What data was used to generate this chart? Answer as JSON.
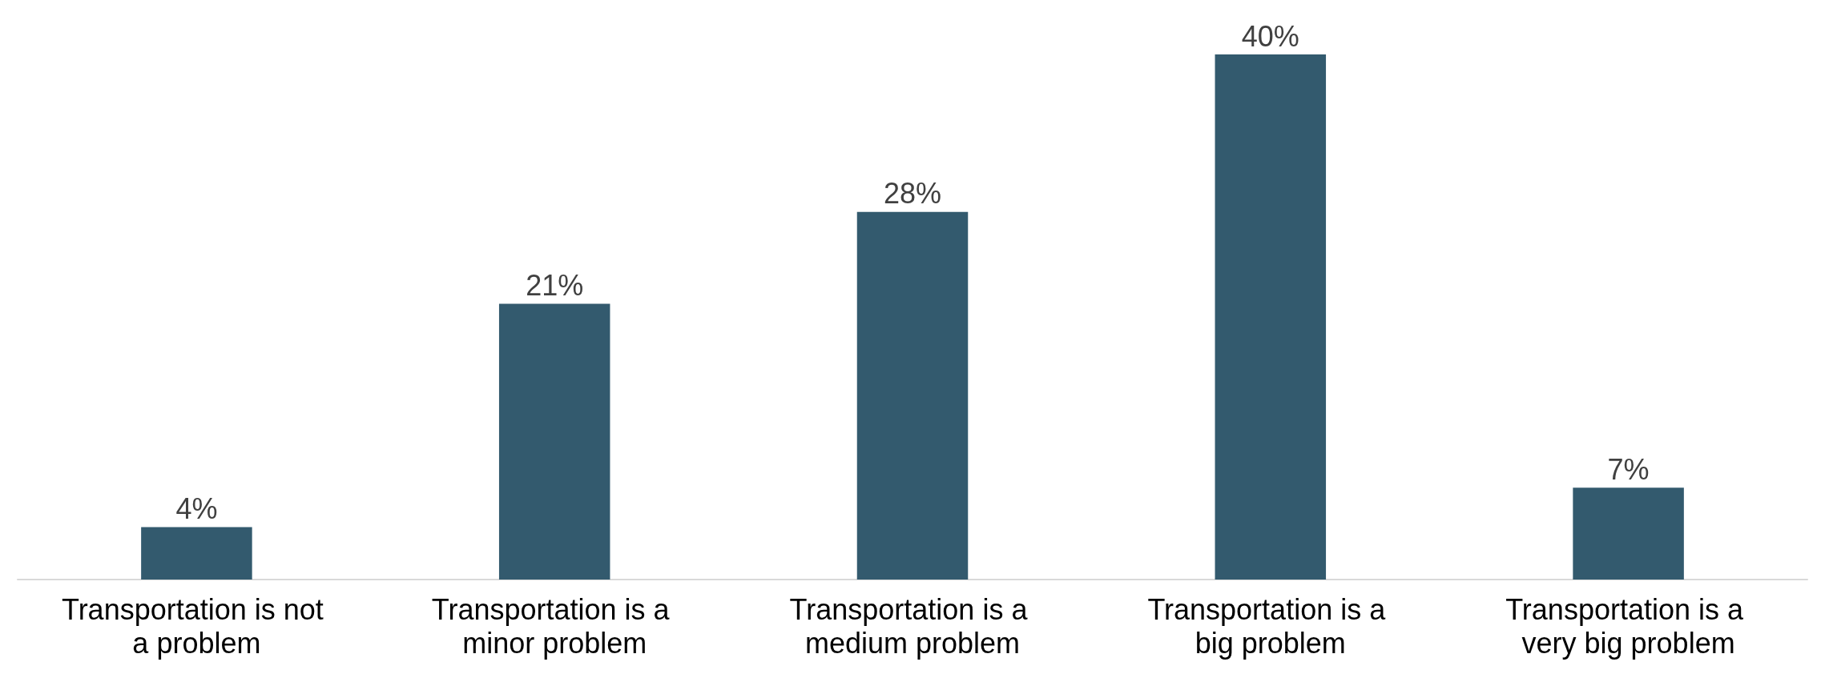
{
  "chart_data": {
    "type": "bar",
    "categories": [
      "Transportation is not a problem",
      "Transportation is a minor problem",
      "Transportation is a medium problem",
      "Transportation is a big problem",
      "Transportation is a very big problem"
    ],
    "values": [
      4,
      21,
      28,
      40,
      7
    ],
    "value_labels": [
      "4%",
      "21%",
      "28%",
      "40%",
      "7%"
    ],
    "color": "#335a6e"
  }
}
